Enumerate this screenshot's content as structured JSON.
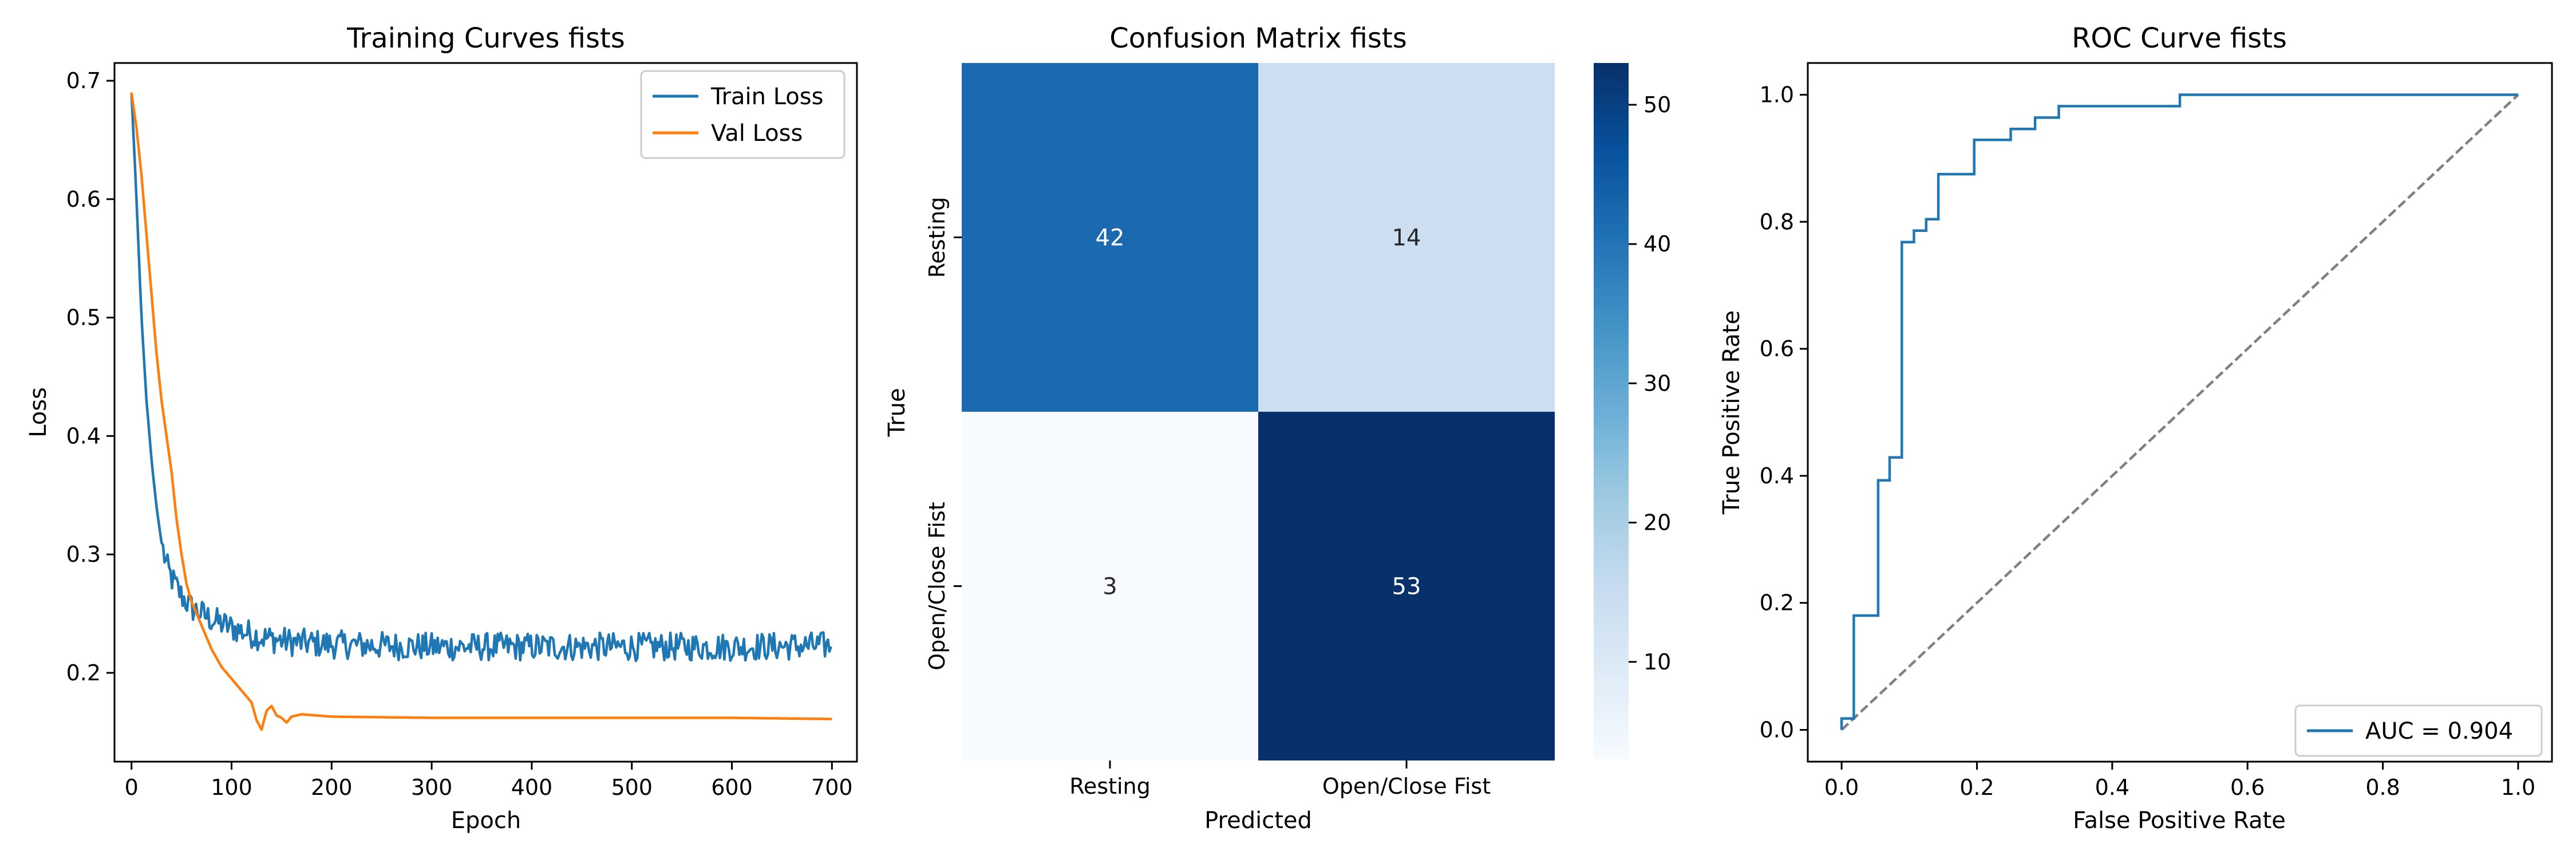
{
  "chart_data": [
    {
      "type": "line",
      "title": "Training Curves fists",
      "xlabel": "Epoch",
      "ylabel": "Loss",
      "xlim": [
        -17,
        725
      ],
      "ylim": [
        0.125,
        0.715
      ],
      "xticks": [
        0,
        100,
        200,
        300,
        400,
        500,
        600,
        700
      ],
      "yticks": [
        0.2,
        0.3,
        0.4,
        0.5,
        0.6,
        0.7
      ],
      "grid": false,
      "legend": "top-right",
      "series": [
        {
          "name": "Train Loss",
          "color": "#1f77b4",
          "noise_amplitude": 0.012,
          "points": [
            [
              0,
              0.69
            ],
            [
              5,
              0.6
            ],
            [
              10,
              0.5
            ],
            [
              15,
              0.43
            ],
            [
              20,
              0.38
            ],
            [
              25,
              0.34
            ],
            [
              30,
              0.31
            ],
            [
              35,
              0.29
            ],
            [
              40,
              0.28
            ],
            [
              50,
              0.265
            ],
            [
              60,
              0.255
            ],
            [
              70,
              0.25
            ],
            [
              80,
              0.245
            ],
            [
              100,
              0.238
            ],
            [
              130,
              0.23
            ],
            [
              160,
              0.226
            ],
            [
              200,
              0.224
            ],
            [
              300,
              0.222
            ],
            [
              400,
              0.222
            ],
            [
              500,
              0.222
            ],
            [
              600,
              0.222
            ],
            [
              700,
              0.223
            ]
          ]
        },
        {
          "name": "Val Loss",
          "color": "#ff7f0e",
          "noise_amplitude": 0,
          "points": [
            [
              0,
              0.69
            ],
            [
              5,
              0.66
            ],
            [
              10,
              0.62
            ],
            [
              15,
              0.57
            ],
            [
              20,
              0.52
            ],
            [
              25,
              0.47
            ],
            [
              30,
              0.43
            ],
            [
              35,
              0.4
            ],
            [
              40,
              0.37
            ],
            [
              45,
              0.33
            ],
            [
              50,
              0.3
            ],
            [
              55,
              0.275
            ],
            [
              60,
              0.26
            ],
            [
              70,
              0.24
            ],
            [
              80,
              0.22
            ],
            [
              90,
              0.205
            ],
            [
              100,
              0.195
            ],
            [
              110,
              0.185
            ],
            [
              120,
              0.175
            ],
            [
              125,
              0.16
            ],
            [
              130,
              0.152
            ],
            [
              135,
              0.168
            ],
            [
              140,
              0.172
            ],
            [
              145,
              0.164
            ],
            [
              150,
              0.162
            ],
            [
              155,
              0.158
            ],
            [
              160,
              0.163
            ],
            [
              170,
              0.165
            ],
            [
              200,
              0.163
            ],
            [
              300,
              0.162
            ],
            [
              400,
              0.162
            ],
            [
              500,
              0.162
            ],
            [
              600,
              0.162
            ],
            [
              700,
              0.161
            ]
          ]
        }
      ]
    },
    {
      "type": "heatmap",
      "title": "Confusion Matrix fists",
      "xlabel": "Predicted",
      "ylabel": "True",
      "x_categories": [
        "Resting",
        "Open/Close Fist"
      ],
      "y_categories": [
        "Resting",
        "Open/Close Fist"
      ],
      "values": [
        [
          42,
          14
        ],
        [
          3,
          53
        ]
      ],
      "colormap": "Blues",
      "colorbar_ticks": [
        10,
        20,
        30,
        40,
        50
      ],
      "vmin": 3,
      "vmax": 53
    },
    {
      "type": "line",
      "title": "ROC Curve fists",
      "xlabel": "False Positive Rate",
      "ylabel": "True Positive Rate",
      "xlim": [
        -0.05,
        1.05
      ],
      "ylim": [
        -0.05,
        1.05
      ],
      "xticks": [
        0.0,
        0.2,
        0.4,
        0.6,
        0.8,
        1.0
      ],
      "yticks": [
        0.0,
        0.2,
        0.4,
        0.6,
        0.8,
        1.0
      ],
      "tick_labels": [
        "0.0",
        "0.2",
        "0.4",
        "0.6",
        "0.8",
        "1.0"
      ],
      "grid": false,
      "legend": "lower-right",
      "series": [
        {
          "name": "AUC = 0.904",
          "color": "#1f77b4",
          "style": "step",
          "points": [
            [
              0,
              0
            ],
            [
              0,
              0.018
            ],
            [
              0.018,
              0.018
            ],
            [
              0.018,
              0.18
            ],
            [
              0.036,
              0.18
            ],
            [
              0.054,
              0.18
            ],
            [
              0.054,
              0.393
            ],
            [
              0.071,
              0.393
            ],
            [
              0.071,
              0.429
            ],
            [
              0.089,
              0.429
            ],
            [
              0.089,
              0.768
            ],
            [
              0.107,
              0.768
            ],
            [
              0.107,
              0.786
            ],
            [
              0.125,
              0.786
            ],
            [
              0.125,
              0.804
            ],
            [
              0.143,
              0.804
            ],
            [
              0.143,
              0.875
            ],
            [
              0.196,
              0.875
            ],
            [
              0.196,
              0.929
            ],
            [
              0.25,
              0.929
            ],
            [
              0.25,
              0.946
            ],
            [
              0.286,
              0.946
            ],
            [
              0.286,
              0.964
            ],
            [
              0.321,
              0.964
            ],
            [
              0.321,
              0.982
            ],
            [
              0.5,
              0.982
            ],
            [
              0.5,
              1.0
            ],
            [
              1.0,
              1.0
            ]
          ]
        },
        {
          "name": "",
          "color": "#808080",
          "style": "dashed",
          "points": [
            [
              0,
              0
            ],
            [
              1,
              1
            ]
          ]
        }
      ]
    }
  ]
}
